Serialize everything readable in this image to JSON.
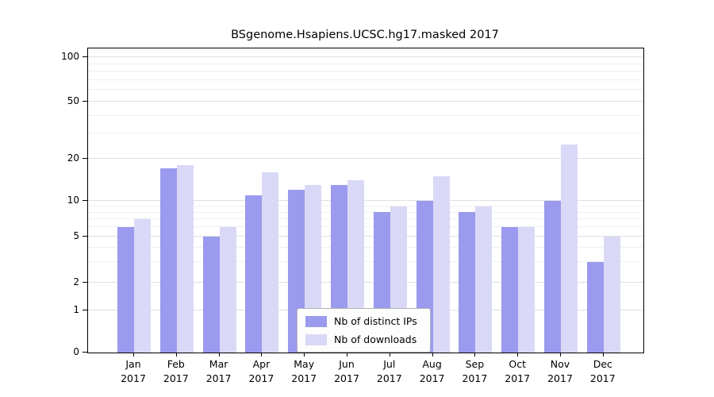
{
  "chart_data": {
    "type": "bar",
    "title": "BSgenome.Hsapiens.UCSC.hg17.masked 2017",
    "categories": [
      "Jan",
      "Feb",
      "Mar",
      "Apr",
      "May",
      "Jun",
      "Jul",
      "Aug",
      "Sep",
      "Oct",
      "Nov",
      "Dec"
    ],
    "year": "2017",
    "series": [
      {
        "name": "Nb of distinct IPs",
        "color": "#9a9aee",
        "values": [
          6,
          17,
          5,
          11,
          12,
          13,
          8,
          10,
          8,
          6,
          10,
          3
        ]
      },
      {
        "name": "Nb of downloads",
        "color": "#d9d9f7",
        "values": [
          7,
          18,
          6,
          16,
          13,
          14,
          9,
          15,
          9,
          6,
          25,
          5
        ]
      }
    ],
    "yticks": [
      0,
      1,
      2,
      5,
      10,
      20,
      50,
      100
    ],
    "scale": "log",
    "ylim": [
      0,
      100
    ],
    "xlabel": "",
    "ylabel": "",
    "grid": true,
    "legend_position": "bottom-center"
  }
}
